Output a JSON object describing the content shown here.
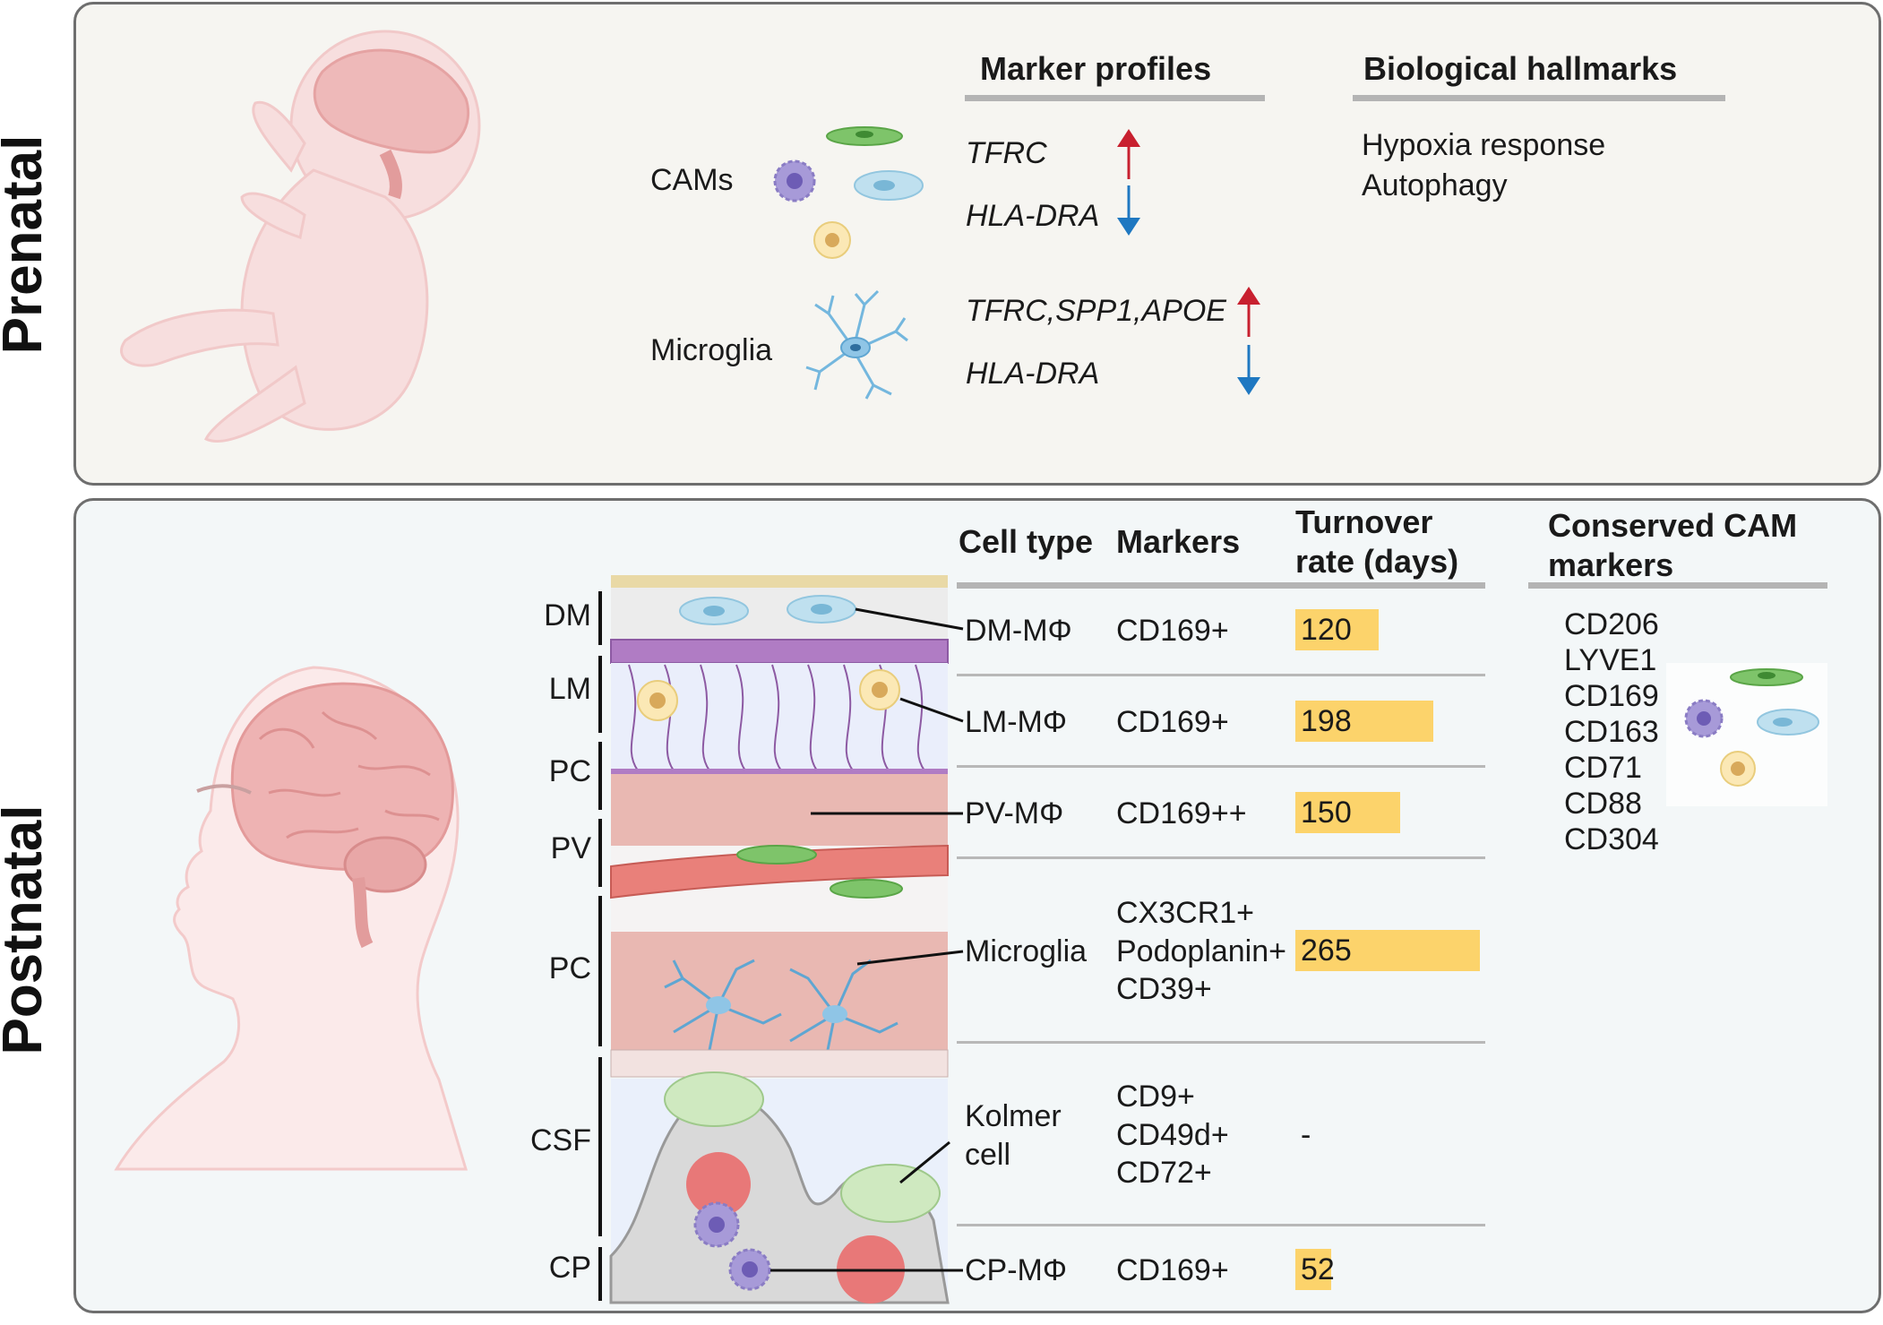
{
  "prenatal": {
    "label": "Prenatal",
    "marker_header": "Marker profiles",
    "hallmark_header": "Biological hallmarks",
    "rows": [
      {
        "cell": "CAMs",
        "markers_up": "TFRC",
        "markers_down": "HLA-DRA"
      },
      {
        "cell": "Microglia",
        "markers_up": "TFRC,SPP1,APOE",
        "markers_down": "HLA-DRA"
      }
    ],
    "hallmarks": [
      "Hypoxia response",
      "Autophagy"
    ]
  },
  "postnatal": {
    "label": "Postnatal",
    "headers": {
      "cell_type": "Cell type",
      "markers": "Markers",
      "turnover_1": "Turnover",
      "turnover_2": "rate (days)"
    },
    "layers": [
      "DM",
      "LM",
      "PC",
      "PV",
      "PC",
      "CSF",
      "CP"
    ],
    "rows": [
      {
        "cell": "DM-MΦ",
        "markers": [
          "CD169+"
        ],
        "turnover": 120,
        "turnover_label": "120"
      },
      {
        "cell": "LM-MΦ",
        "markers": [
          "CD169+"
        ],
        "turnover": 198,
        "turnover_label": "198"
      },
      {
        "cell": "PV-MΦ",
        "markers": [
          "CD169++"
        ],
        "turnover": 150,
        "turnover_label": "150"
      },
      {
        "cell": "Microglia",
        "markers": [
          "CX3CR1+",
          "Podoplanin+",
          "CD39+"
        ],
        "turnover": 265,
        "turnover_label": "265"
      },
      {
        "cell_1": "Kolmer",
        "cell_2": "cell",
        "markers": [
          "CD9+",
          "CD49d+",
          "CD72+"
        ],
        "turnover_label": "-"
      },
      {
        "cell": "CP-MΦ",
        "markers": [
          "CD169+"
        ],
        "turnover": 52,
        "turnover_label": "52"
      }
    ],
    "conserved_header_1": "Conserved CAM",
    "conserved_header_2": "markers",
    "conserved_markers": [
      "CD206",
      "LYVE1",
      "CD169",
      "CD163",
      "CD71",
      "CD88",
      "CD304"
    ]
  },
  "colors": {
    "up_arrow": "#c8202f",
    "down_arrow": "#1f78c1",
    "turnover_bar": "#fcd36b",
    "prenatal_bg": "#f6f5f1",
    "postnatal_bg": "#f3f7f8"
  }
}
